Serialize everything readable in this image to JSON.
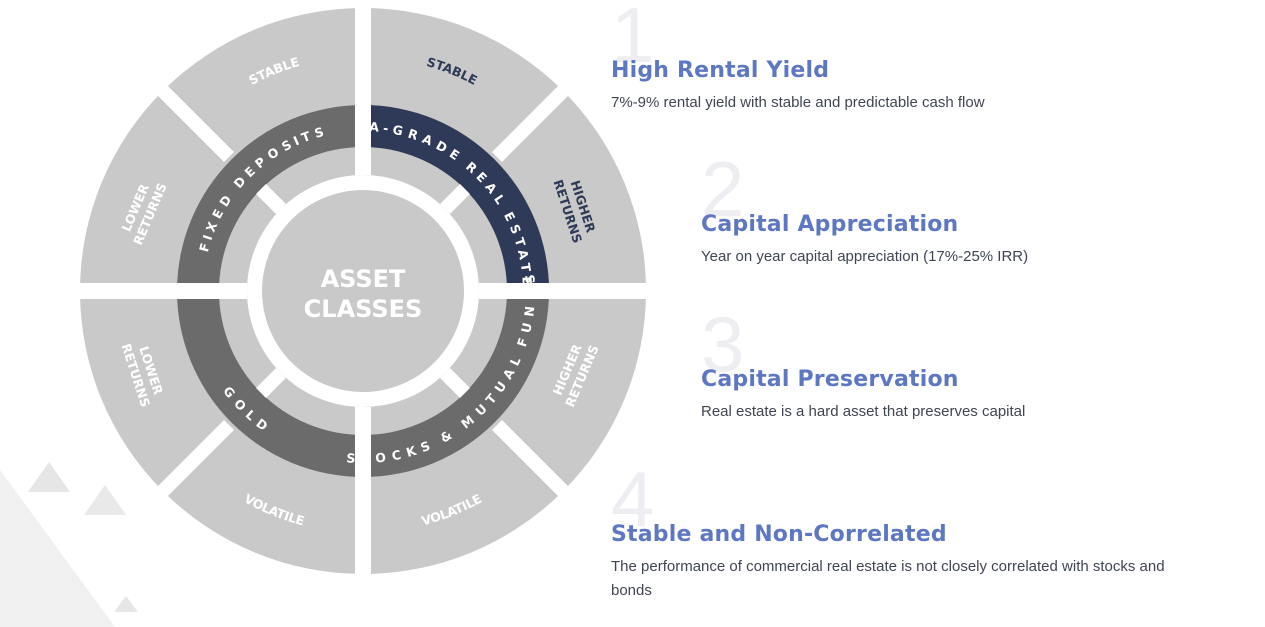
{
  "wheel": {
    "center_line1": "ASSET",
    "center_line2": "CLASSES",
    "inner": {
      "fixed_deposits": "FIXED DEPOSITS",
      "real_estate": "A-GRADE REAL ESTATE",
      "gold": "GOLD",
      "stocks": "STOCKS & MUTUAL FUNDS"
    },
    "outer": {
      "tl_stable": "STABLE",
      "tl_returns_1": "LOWER",
      "tl_returns_2": "RETURNS",
      "tr_stable": "STABLE",
      "tr_returns_1": "HIGHER",
      "tr_returns_2": "RETURNS",
      "bl_returns_1": "LOWER",
      "bl_returns_2": "RETURNS",
      "bl_volatile": "VOLATILE",
      "br_volatile": "VOLATILE",
      "br_returns_1": "HIGHER",
      "br_returns_2": "RETURNS"
    },
    "colors": {
      "outer": "#c9c9c9",
      "inner_ring": "#6b6b6b",
      "highlight": "#2e3a57",
      "center": "#c9c9c9"
    }
  },
  "features": [
    {
      "number": "1",
      "title": "High Rental Yield",
      "desc": "7%-9% rental yield with stable and predictable cash flow"
    },
    {
      "number": "2",
      "title": "Capital Appreciation",
      "desc": "Year on year capital appreciation (17%-25% IRR)"
    },
    {
      "number": "3",
      "title": "Capital Preservation",
      "desc": "Real estate is a hard asset that preserves capital"
    },
    {
      "number": "4",
      "title": "Stable and Non-Correlated",
      "desc": "The performance of commercial real estate is not closely correlated with stocks and bonds"
    }
  ],
  "accent_color": "#5d77c2"
}
